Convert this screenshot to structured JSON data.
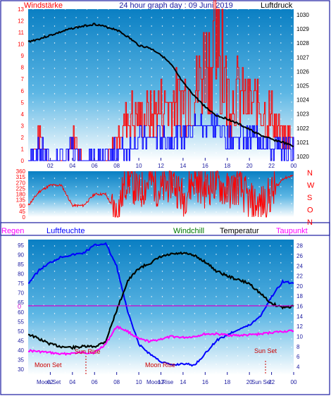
{
  "colors": {
    "wind": "#ff0000",
    "gust_blue": "#0000ff",
    "pressure": "#000000",
    "humidity": "#0000ff",
    "windchill": "#007700",
    "temperature": "#000000",
    "dewpoint": "#ff00ff",
    "rain": "#ff00ff",
    "frame_blue": "#1a1aa0"
  },
  "header": {
    "left": "Windstärke",
    "center": "24 hour graph day : 09 Juni 2019",
    "right": "Luftdruck"
  },
  "legend": {
    "rain": "Regen",
    "humidity": "Luftfeuchte",
    "windchill": "Windchill",
    "temperature": "Temperatur",
    "dewpoint": "Taupunkt"
  },
  "annotations": {
    "moon_set": "Moon Set",
    "moon_rise": "Moon Rise",
    "sun_rise": "Sun Rise",
    "sun_set": "Sun Set",
    "rain_zero": "0"
  },
  "chart_data": [
    {
      "type": "line",
      "title": "24 hour graph day : 09 Juni 2019",
      "x_ticks": [
        "02",
        "04",
        "06",
        "08",
        "10",
        "12",
        "14",
        "16",
        "18",
        "20",
        "22",
        "00"
      ],
      "left_axis": {
        "label": "Windstärke",
        "ticks": [
          0,
          1,
          2,
          3,
          4,
          5,
          6,
          7,
          8,
          9,
          10,
          11,
          12,
          13
        ],
        "range": [
          0,
          13
        ]
      },
      "right_axis": {
        "label": "Luftdruck",
        "ticks": [
          1020,
          1021,
          1022,
          1023,
          1024,
          1025,
          1026,
          1027,
          1028,
          1029,
          1030
        ],
        "range": [
          1019.7,
          1030.4
        ]
      },
      "series": [
        {
          "axis": "right",
          "x": [
            0,
            1,
            2,
            3,
            4,
            5,
            6,
            7,
            8,
            9,
            10,
            11,
            12,
            13,
            14,
            15,
            16,
            17,
            18,
            19,
            20,
            21,
            22,
            23,
            24
          ],
          "values": [
            1028.1,
            1028.3,
            1028.55,
            1028.8,
            1029.05,
            1029.2,
            1029.35,
            1029.15,
            1028.95,
            1028.45,
            1027.85,
            1027.65,
            1027.2,
            1026.4,
            1025.2,
            1024.3,
            1023.5,
            1022.9,
            1022.65,
            1022.3,
            1021.9,
            1021.5,
            1021.2,
            1021.0,
            1020.7
          ]
        },
        {
          "axis": "left",
          "x": [
            0,
            1,
            2,
            3,
            4,
            5,
            6,
            7,
            8,
            9,
            10,
            11,
            12,
            13,
            14,
            15,
            16,
            17,
            18,
            19,
            20,
            21,
            22,
            23,
            24
          ],
          "values": [
            0,
            2,
            0,
            0,
            2,
            0,
            0,
            0,
            2,
            4,
            4,
            4,
            5,
            5,
            6,
            6,
            9,
            10,
            6,
            6,
            5,
            5,
            4,
            2,
            2
          ]
        },
        {
          "axis": "left",
          "x": [
            0,
            1,
            2,
            3,
            4,
            5,
            6,
            7,
            8,
            9,
            10,
            11,
            12,
            13,
            14,
            15,
            16,
            17,
            18,
            19,
            20,
            21,
            22,
            23,
            24
          ],
          "values": [
            0,
            1,
            0,
            0,
            1,
            0,
            0,
            0,
            1,
            1,
            2,
            2,
            2,
            2,
            2,
            3,
            3,
            3,
            2,
            2,
            2,
            2,
            1,
            1,
            1
          ]
        }
      ]
    },
    {
      "type": "scatter",
      "x_ticks": [
        "02",
        "04",
        "06",
        "08",
        "10",
        "12",
        "14",
        "16",
        "18",
        "20",
        "22",
        "00"
      ],
      "left_axis": {
        "ticks": [
          0,
          45,
          90,
          135,
          180,
          225,
          270,
          315,
          360
        ],
        "range": [
          0,
          360
        ]
      },
      "right_axis": {
        "ticks": [
          "N",
          "W",
          "S",
          "O",
          "N"
        ]
      },
      "series": [
        {
          "x": [
            0,
            1,
            2,
            3,
            4,
            5,
            6,
            7,
            8,
            9,
            10,
            11,
            12,
            13,
            14,
            15,
            16,
            17,
            18,
            19,
            20,
            21,
            22,
            23,
            24
          ],
          "values": [
            90,
            200,
            250,
            250,
            90,
            90,
            180,
            180,
            20,
            330,
            180,
            300,
            200,
            300,
            150,
            300,
            220,
            280,
            200,
            250,
            120,
            90,
            180,
            300,
            330
          ]
        }
      ]
    },
    {
      "type": "line",
      "x_ticks": [
        "02",
        "04",
        "06",
        "08",
        "10",
        "12",
        "14",
        "16",
        "18",
        "20",
        "22",
        "00"
      ],
      "left_axis": {
        "ticks": [
          30,
          35,
          40,
          45,
          50,
          55,
          60,
          65,
          70,
          75,
          80,
          85,
          90,
          95
        ],
        "range": [
          27,
          98
        ]
      },
      "right_axis": {
        "ticks": [
          4,
          6,
          8,
          10,
          12,
          14,
          16,
          18,
          20,
          22,
          24,
          26,
          28
        ],
        "range": [
          2.4,
          29.2
        ]
      },
      "series": [
        {
          "axis": "left",
          "x": [
            0,
            1,
            2,
            3,
            4,
            5,
            6,
            7,
            8,
            9,
            10,
            11,
            12,
            13,
            14,
            15,
            16,
            17,
            18,
            19,
            20,
            21,
            22,
            23,
            24
          ],
          "values": [
            75,
            82,
            86,
            89,
            90,
            91,
            95,
            96,
            84,
            60,
            43,
            38,
            34,
            32,
            33,
            32,
            38,
            45,
            48,
            51,
            53,
            58,
            68,
            76,
            75
          ]
        },
        {
          "axis": "right",
          "x": [
            0,
            1,
            2,
            3,
            4,
            5,
            6,
            7,
            8,
            9,
            10,
            11,
            12,
            13,
            14,
            15,
            16,
            17,
            18,
            19,
            20,
            21,
            22,
            23,
            24
          ],
          "values": [
            10.5,
            9.5,
            8.5,
            8.0,
            7.8,
            8.0,
            8.0,
            9.0,
            15.2,
            21.0,
            23.5,
            24.5,
            25.8,
            26.3,
            26.5,
            26.0,
            24.8,
            23.0,
            22.0,
            21.2,
            20.5,
            18.5,
            16.5,
            15.8,
            16.0
          ]
        },
        {
          "axis": "right",
          "x": [
            0,
            1,
            2,
            3,
            4,
            5,
            6,
            7,
            8,
            9,
            10,
            11,
            12,
            13,
            14,
            15,
            16,
            17,
            18,
            19,
            20,
            21,
            22,
            23,
            24
          ],
          "values": [
            7.2,
            7.0,
            6.8,
            6.5,
            6.7,
            6.8,
            6.8,
            8.5,
            12.0,
            11.0,
            9.5,
            9.0,
            9.5,
            10.0,
            9.8,
            10.0,
            10.5,
            10.5,
            10.3,
            10.2,
            10.3,
            10.5,
            10.8,
            11.0,
            11.1
          ]
        },
        {
          "axis": "right",
          "x": [
            0,
            1,
            2,
            3,
            4,
            5,
            6,
            7,
            8,
            9,
            10,
            11,
            12,
            13,
            14,
            15,
            16,
            17,
            18,
            19,
            20,
            21,
            22,
            23,
            24
          ],
          "values": [
            10.5,
            9.5,
            8.5,
            8.0,
            7.8,
            8.0,
            8.0,
            9.0,
            15.2,
            21.0,
            23.5,
            24.5,
            25.8,
            26.3,
            26.5,
            26.0,
            24.8,
            23.0,
            22.0,
            21.2,
            20.5,
            18.5,
            16.5,
            15.8,
            16.0
          ]
        }
      ]
    }
  ]
}
